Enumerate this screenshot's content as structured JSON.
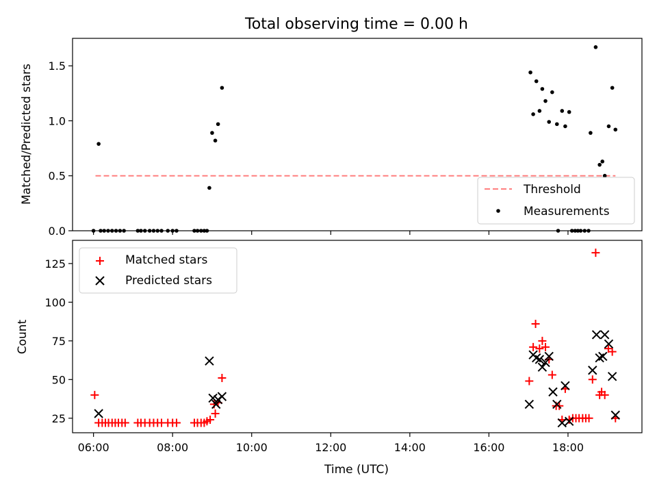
{
  "title": "Total observing time = 0.00 h",
  "chart_data": [
    {
      "type": "scatter",
      "title": "Total observing time = 0.00 h",
      "xlabel": "",
      "ylabel": "Matched/Predicted stars",
      "x_unit": "hours UTC",
      "xlim": [
        5.47,
        19.87
      ],
      "ylim": [
        0,
        1.75
      ],
      "yticks": [
        0.0,
        0.5,
        1.0,
        1.5
      ],
      "yticklabels": [
        "0.0",
        "0.5",
        "1.0",
        "1.5"
      ],
      "legend_position": "lower-right",
      "threshold": {
        "name": "Threshold",
        "x": [
          6.05,
          19.2
        ],
        "y": [
          0.5,
          0.5
        ],
        "color": "#ff7f7f",
        "style": "dashed"
      },
      "series": [
        {
          "name": "Measurements",
          "color": "#000000",
          "marker": "dot",
          "points": [
            [
              6.0,
              0
            ],
            [
              6.13,
              0.79
            ],
            [
              6.18,
              0
            ],
            [
              6.27,
              0
            ],
            [
              6.37,
              0
            ],
            [
              6.47,
              0
            ],
            [
              6.57,
              0
            ],
            [
              6.67,
              0
            ],
            [
              6.77,
              0
            ],
            [
              7.12,
              0
            ],
            [
              7.2,
              0
            ],
            [
              7.3,
              0
            ],
            [
              7.42,
              0
            ],
            [
              7.52,
              0
            ],
            [
              7.62,
              0
            ],
            [
              7.72,
              0
            ],
            [
              7.88,
              0
            ],
            [
              8.0,
              0
            ],
            [
              8.1,
              0
            ],
            [
              8.55,
              0
            ],
            [
              8.63,
              0
            ],
            [
              8.72,
              0
            ],
            [
              8.8,
              0
            ],
            [
              8.87,
              0
            ],
            [
              8.93,
              0.39
            ],
            [
              9.0,
              0.89
            ],
            [
              9.08,
              0.82
            ],
            [
              9.15,
              0.97
            ],
            [
              9.25,
              1.3
            ],
            [
              17.05,
              1.44
            ],
            [
              17.12,
              1.06
            ],
            [
              17.2,
              1.36
            ],
            [
              17.28,
              1.09
            ],
            [
              17.35,
              1.29
            ],
            [
              17.43,
              1.18
            ],
            [
              17.52,
              0.99
            ],
            [
              17.6,
              1.26
            ],
            [
              17.72,
              0.97
            ],
            [
              17.75,
              0
            ],
            [
              17.85,
              1.09
            ],
            [
              17.93,
              0.95
            ],
            [
              18.03,
              1.08
            ],
            [
              18.1,
              0
            ],
            [
              18.18,
              0
            ],
            [
              18.25,
              0
            ],
            [
              18.32,
              0
            ],
            [
              18.42,
              0
            ],
            [
              18.52,
              0
            ],
            [
              18.57,
              0.89
            ],
            [
              18.7,
              1.67
            ],
            [
              18.8,
              0.6
            ],
            [
              18.87,
              0.63
            ],
            [
              18.93,
              0.5
            ],
            [
              19.03,
              0.95
            ],
            [
              19.12,
              1.3
            ],
            [
              19.2,
              0.92
            ]
          ]
        }
      ]
    },
    {
      "type": "scatter",
      "title": "",
      "xlabel": "Time (UTC)",
      "ylabel": "Count",
      "x_unit": "hours UTC",
      "xlim": [
        5.47,
        19.87
      ],
      "ylim": [
        15.6,
        140
      ],
      "yticks": [
        25,
        50,
        75,
        100,
        125
      ],
      "yticklabels": [
        "25",
        "50",
        "75",
        "100",
        "125"
      ],
      "xticks": [
        6,
        8,
        10,
        12,
        14,
        16,
        18
      ],
      "xticklabels": [
        "06:00",
        "08:00",
        "10:00",
        "12:00",
        "14:00",
        "16:00",
        "18:00"
      ],
      "legend_position": "upper-left",
      "series": [
        {
          "name": "Matched stars",
          "color": "#ff0000",
          "marker": "plus",
          "points": [
            [
              6.03,
              40
            ],
            [
              6.13,
              22
            ],
            [
              6.22,
              22
            ],
            [
              6.3,
              22
            ],
            [
              6.38,
              22
            ],
            [
              6.47,
              22
            ],
            [
              6.55,
              22
            ],
            [
              6.63,
              22
            ],
            [
              6.72,
              22
            ],
            [
              6.8,
              22
            ],
            [
              7.12,
              22
            ],
            [
              7.2,
              22
            ],
            [
              7.3,
              22
            ],
            [
              7.42,
              22
            ],
            [
              7.52,
              22
            ],
            [
              7.62,
              22
            ],
            [
              7.72,
              22
            ],
            [
              7.88,
              22
            ],
            [
              8.0,
              22
            ],
            [
              8.1,
              22
            ],
            [
              8.55,
              22
            ],
            [
              8.63,
              22
            ],
            [
              8.72,
              22
            ],
            [
              8.8,
              22
            ],
            [
              8.87,
              23
            ],
            [
              8.95,
              24
            ],
            [
              9.05,
              34
            ],
            [
              9.08,
              28
            ],
            [
              9.15,
              35
            ],
            [
              9.25,
              51
            ],
            [
              17.02,
              49
            ],
            [
              17.12,
              71
            ],
            [
              17.18,
              86
            ],
            [
              17.28,
              70
            ],
            [
              17.35,
              75
            ],
            [
              17.43,
              71
            ],
            [
              17.52,
              63
            ],
            [
              17.6,
              53
            ],
            [
              17.7,
              33
            ],
            [
              17.78,
              33
            ],
            [
              17.85,
              24
            ],
            [
              17.93,
              44
            ],
            [
              18.03,
              24
            ],
            [
              18.12,
              25
            ],
            [
              18.2,
              25
            ],
            [
              18.28,
              25
            ],
            [
              18.37,
              25
            ],
            [
              18.45,
              25
            ],
            [
              18.53,
              25
            ],
            [
              18.62,
              50
            ],
            [
              18.7,
              132
            ],
            [
              18.8,
              40
            ],
            [
              18.85,
              42
            ],
            [
              18.93,
              40
            ],
            [
              19.02,
              70
            ],
            [
              19.12,
              68
            ],
            [
              19.2,
              25
            ]
          ]
        },
        {
          "name": "Predicted stars",
          "color": "#000000",
          "marker": "x",
          "points": [
            [
              6.13,
              28
            ],
            [
              8.93,
              62
            ],
            [
              9.02,
              38
            ],
            [
              9.1,
              34
            ],
            [
              9.15,
              37
            ],
            [
              9.25,
              39
            ],
            [
              17.02,
              34
            ],
            [
              17.12,
              66
            ],
            [
              17.2,
              64
            ],
            [
              17.28,
              63
            ],
            [
              17.35,
              58
            ],
            [
              17.43,
              61
            ],
            [
              17.52,
              65
            ],
            [
              17.62,
              42
            ],
            [
              17.72,
              34
            ],
            [
              17.85,
              22
            ],
            [
              17.93,
              46
            ],
            [
              18.03,
              23
            ],
            [
              18.62,
              56
            ],
            [
              18.72,
              79
            ],
            [
              18.8,
              64
            ],
            [
              18.88,
              65
            ],
            [
              18.93,
              79
            ],
            [
              19.03,
              73
            ],
            [
              19.12,
              52
            ],
            [
              19.2,
              27
            ]
          ]
        }
      ]
    }
  ]
}
